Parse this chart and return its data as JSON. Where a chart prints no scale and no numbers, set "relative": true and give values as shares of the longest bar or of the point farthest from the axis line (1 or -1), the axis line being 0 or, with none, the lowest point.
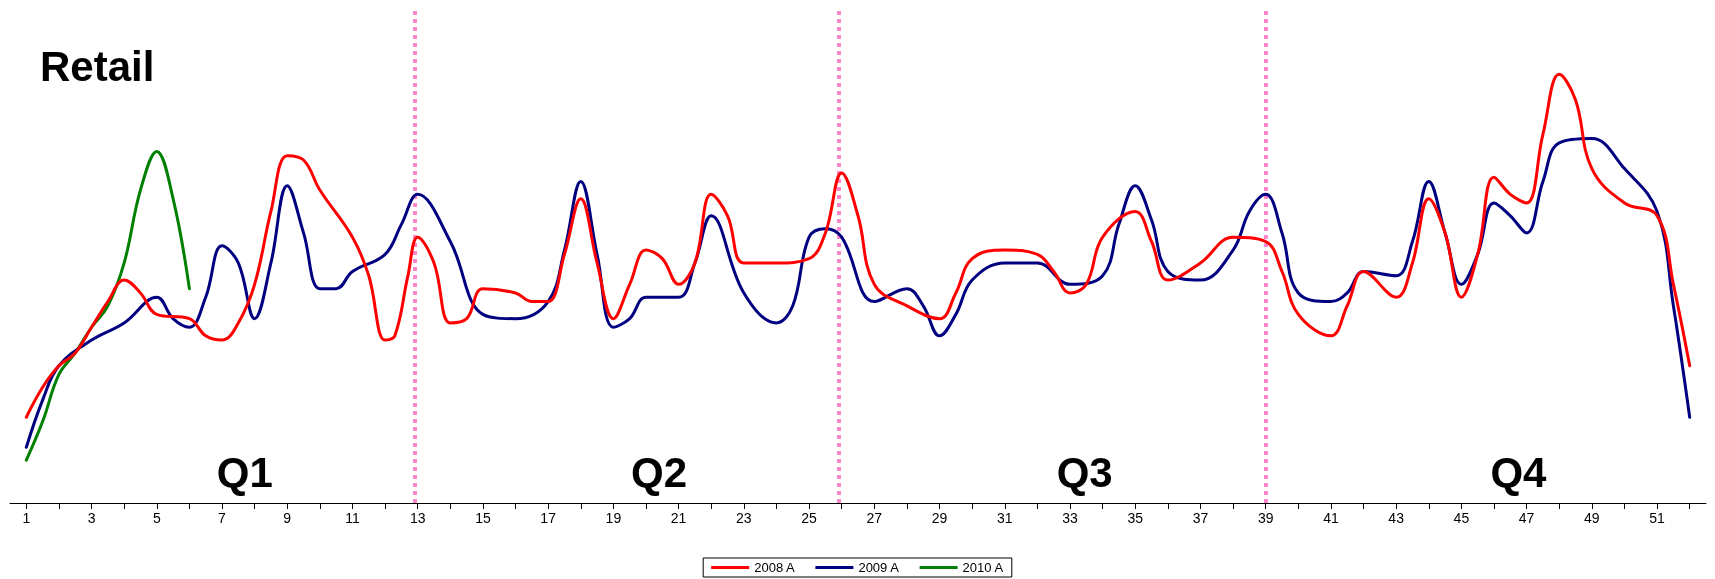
{
  "chart_data": {
    "type": "line",
    "title": "Retail",
    "relative": true,
    "annotations": [
      "Q1",
      "Q2",
      "Q3",
      "Q4"
    ],
    "xlim": [
      0.5,
      52.5
    ],
    "xticks": [
      1,
      {
        "value": 2,
        "label": null
      },
      3,
      {
        "value": 4,
        "label": null
      },
      5,
      {
        "value": 6,
        "label": null
      },
      7,
      {
        "value": 8,
        "label": null
      },
      9,
      {
        "value": 10,
        "label": null
      },
      11,
      {
        "value": 12,
        "label": null
      },
      13,
      {
        "value": 14,
        "label": null
      },
      15,
      {
        "value": 16,
        "label": null
      },
      17,
      {
        "value": 18,
        "label": null
      },
      19,
      {
        "value": 20,
        "label": null
      },
      21,
      {
        "value": 22,
        "label": null
      },
      23,
      {
        "value": 24,
        "label": null
      },
      25,
      {
        "value": 26,
        "label": null
      },
      27,
      {
        "value": 28,
        "label": null
      },
      29,
      {
        "value": 30,
        "label": null
      },
      31,
      {
        "value": 32,
        "label": null
      },
      33,
      {
        "value": 34,
        "label": null
      },
      35,
      {
        "value": 36,
        "label": null
      },
      37,
      {
        "value": 38,
        "label": null
      },
      39,
      {
        "value": 40,
        "label": null
      },
      41,
      {
        "value": 42,
        "label": null
      },
      43,
      {
        "value": 44,
        "label": null
      },
      45,
      {
        "value": 46,
        "label": null
      },
      47,
      {
        "value": 48,
        "label": null
      },
      49,
      {
        "value": 50,
        "label": null
      },
      51,
      {
        "value": 52,
        "label": null
      }
    ],
    "series": [
      {
        "name": "2008 A",
        "color": "#ff0000",
        "x": [
          1,
          1.5,
          2,
          2.5,
          3,
          3.5,
          4,
          4.5,
          5,
          6,
          6.5,
          7,
          7.5,
          8,
          8.5,
          9,
          9.5,
          10,
          11,
          11.5,
          12,
          12.3,
          12.7,
          13,
          13.5,
          14,
          14.5,
          15,
          16,
          16.5,
          17,
          17.5,
          18,
          18.5,
          19,
          19.5,
          20,
          20.5,
          21,
          21.5,
          22,
          22.5,
          23,
          24,
          25,
          25.5,
          26,
          26.5,
          27,
          28,
          29,
          29.5,
          30,
          31,
          32,
          32.5,
          33,
          33.5,
          34,
          35,
          35.5,
          36,
          37,
          38,
          39,
          39.5,
          40,
          41,
          41.5,
          42,
          43,
          43.5,
          44,
          44.5,
          45,
          45.5,
          46,
          46.5,
          47,
          47.5,
          48,
          48.5,
          49,
          50,
          51,
          51.5,
          52
        ],
        "values": [
          0.2,
          0.27,
          0.32,
          0.35,
          0.41,
          0.47,
          0.52,
          0.49,
          0.44,
          0.43,
          0.39,
          0.38,
          0.42,
          0.51,
          0.68,
          0.81,
          0.8,
          0.73,
          0.62,
          0.53,
          0.38,
          0.39,
          0.53,
          0.62,
          0.56,
          0.42,
          0.43,
          0.5,
          0.49,
          0.47,
          0.47,
          0.58,
          0.71,
          0.56,
          0.43,
          0.51,
          0.59,
          0.57,
          0.51,
          0.56,
          0.72,
          0.67,
          0.56,
          0.56,
          0.57,
          0.63,
          0.77,
          0.67,
          0.51,
          0.46,
          0.43,
          0.49,
          0.57,
          0.59,
          0.58,
          0.54,
          0.49,
          0.51,
          0.62,
          0.68,
          0.61,
          0.52,
          0.56,
          0.62,
          0.61,
          0.54,
          0.44,
          0.39,
          0.46,
          0.54,
          0.48,
          0.56,
          0.71,
          0.63,
          0.48,
          0.58,
          0.76,
          0.72,
          0.7,
          0.86,
          1,
          0.94,
          0.78,
          0.7,
          0.67,
          0.51,
          0.32
        ]
      },
      {
        "name": "2009 A",
        "color": "#000080",
        "x": [
          1,
          1.5,
          2,
          3,
          4,
          5,
          5.5,
          6,
          6.5,
          7,
          7.5,
          8,
          8.5,
          9,
          9.5,
          10,
          10.5,
          11,
          12,
          12.5,
          13,
          14,
          15,
          16,
          17,
          17.5,
          18,
          18.5,
          19,
          19.5,
          20,
          21,
          21.5,
          22,
          23,
          24,
          24.5,
          25,
          25.5,
          26,
          27,
          28,
          28.5,
          29,
          29.5,
          30,
          31,
          32,
          33,
          34,
          34.5,
          35,
          35.5,
          36,
          37,
          38,
          38.5,
          39,
          39.5,
          40,
          41,
          41.5,
          42,
          43,
          43.5,
          44,
          44.5,
          45,
          45.5,
          46,
          46.5,
          47,
          47.5,
          48,
          49,
          50,
          51,
          51.5,
          52
        ],
        "values": [
          0.13,
          0.24,
          0.32,
          0.38,
          0.42,
          0.48,
          0.43,
          0.41,
          0.48,
          0.6,
          0.56,
          0.43,
          0.56,
          0.74,
          0.63,
          0.5,
          0.5,
          0.54,
          0.58,
          0.65,
          0.72,
          0.61,
          0.44,
          0.43,
          0.47,
          0.59,
          0.75,
          0.58,
          0.41,
          0.43,
          0.48,
          0.48,
          0.56,
          0.67,
          0.49,
          0.42,
          0.46,
          0.62,
          0.64,
          0.62,
          0.47,
          0.5,
          0.46,
          0.39,
          0.44,
          0.52,
          0.56,
          0.56,
          0.51,
          0.53,
          0.65,
          0.74,
          0.66,
          0.54,
          0.52,
          0.59,
          0.68,
          0.72,
          0.63,
          0.49,
          0.47,
          0.49,
          0.54,
          0.53,
          0.61,
          0.75,
          0.63,
          0.51,
          0.58,
          0.7,
          0.67,
          0.63,
          0.75,
          0.84,
          0.85,
          0.78,
          0.68,
          0.46,
          0.2
        ]
      },
      {
        "name": "2010 A",
        "color": "#008000",
        "x": [
          1,
          1.5,
          2,
          2.5,
          3,
          3.5,
          4,
          4.5,
          5,
          5.5,
          6
        ],
        "values": [
          0.1,
          0.19,
          0.3,
          0.35,
          0.41,
          0.46,
          0.56,
          0.73,
          0.82,
          0.71,
          0.5
        ]
      }
    ],
    "ref_lines": [
      {
        "axis": "x",
        "value": 12.9,
        "color": "#ff88cc",
        "line_style": "dotted"
      },
      {
        "axis": "x",
        "value": 25.9,
        "color": "#ff88cc",
        "line_style": "dotted"
      },
      {
        "axis": "x",
        "value": 39,
        "color": "#ff88cc",
        "line_style": "dotted"
      }
    ],
    "legend": "bottom",
    "grid": false,
    "marker": "none",
    "line_style": "solid"
  }
}
